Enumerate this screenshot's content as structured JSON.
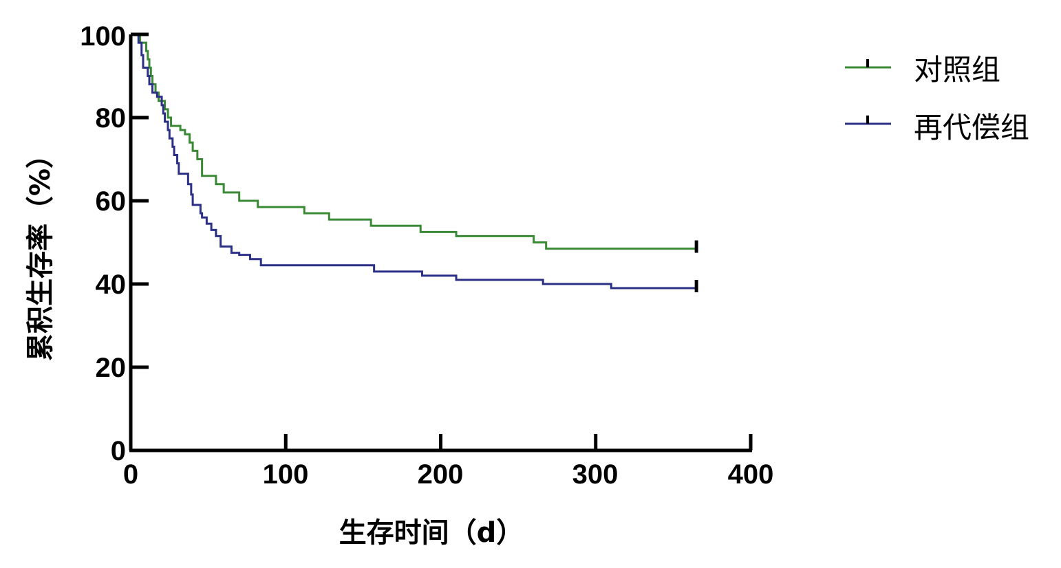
{
  "chart_data": {
    "type": "line",
    "subtype": "kaplan-meier-step",
    "title": "",
    "xlabel": "生存时间（d）",
    "ylabel": "累积生存率（%）",
    "xlim": [
      0,
      400
    ],
    "ylim": [
      0,
      100
    ],
    "x_ticks": [
      "0",
      "100",
      "200",
      "300",
      "400"
    ],
    "y_ticks": [
      "0",
      "20",
      "40",
      "60",
      "80",
      "100"
    ],
    "grid": false,
    "legend_position": "top-right",
    "series": [
      {
        "name": "对照组",
        "color": "#3a8a35",
        "censor_at": 365,
        "points": [
          [
            0,
            100
          ],
          [
            6,
            98
          ],
          [
            10,
            96
          ],
          [
            11,
            94
          ],
          [
            12,
            92
          ],
          [
            13,
            90
          ],
          [
            14,
            88
          ],
          [
            16,
            86
          ],
          [
            18,
            84
          ],
          [
            22,
            82
          ],
          [
            24,
            80
          ],
          [
            26,
            78
          ],
          [
            32,
            77
          ],
          [
            35,
            76
          ],
          [
            38,
            74
          ],
          [
            40,
            72
          ],
          [
            43,
            70
          ],
          [
            46,
            66
          ],
          [
            55,
            64
          ],
          [
            60,
            62
          ],
          [
            70,
            60
          ],
          [
            82,
            58.5
          ],
          [
            112,
            57
          ],
          [
            128,
            55.5
          ],
          [
            155,
            54
          ],
          [
            187,
            52.5
          ],
          [
            210,
            51.5
          ],
          [
            260,
            50
          ],
          [
            268,
            48.5
          ],
          [
            365,
            48.5
          ]
        ]
      },
      {
        "name": "再代偿组",
        "color": "#2b2f86",
        "censor_at": 365,
        "points": [
          [
            0,
            100
          ],
          [
            5,
            98
          ],
          [
            7,
            95
          ],
          [
            8,
            92
          ],
          [
            11,
            90
          ],
          [
            12,
            88
          ],
          [
            14,
            86
          ],
          [
            17,
            85
          ],
          [
            20,
            83
          ],
          [
            21,
            81
          ],
          [
            22,
            79
          ],
          [
            24,
            77
          ],
          [
            25,
            75
          ],
          [
            27,
            73
          ],
          [
            28,
            71
          ],
          [
            30,
            69
          ],
          [
            31,
            66.5
          ],
          [
            37,
            64
          ],
          [
            39,
            61.5
          ],
          [
            40,
            59
          ],
          [
            45,
            57
          ],
          [
            46,
            56
          ],
          [
            49,
            54.5
          ],
          [
            52,
            53
          ],
          [
            55,
            51.5
          ],
          [
            58,
            49
          ],
          [
            65,
            47.5
          ],
          [
            70,
            47
          ],
          [
            77,
            46
          ],
          [
            84,
            44.5
          ],
          [
            157,
            43
          ],
          [
            188,
            42
          ],
          [
            210,
            41
          ],
          [
            266,
            40
          ],
          [
            310,
            39
          ],
          [
            365,
            39
          ]
        ]
      }
    ]
  }
}
